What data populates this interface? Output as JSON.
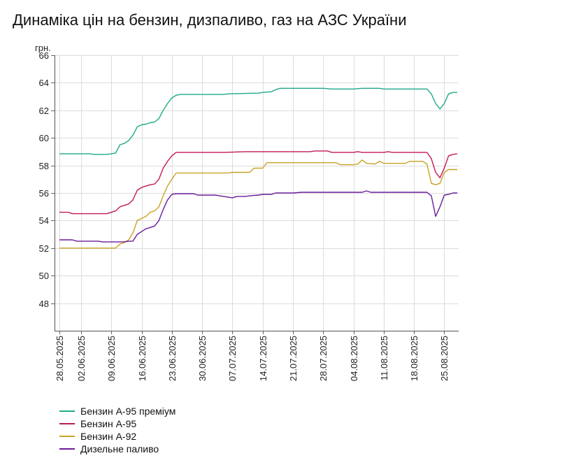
{
  "title": "Динаміка цін на бензин, дизпаливо, газ на АЗС України",
  "chart_data": {
    "type": "line",
    "title": "Динаміка цін на бензин, дизпаливо, газ на АЗС України",
    "ylabel": "грн.",
    "xlabel": "",
    "ylim": [
      46,
      66
    ],
    "yticks": [
      48,
      50,
      52,
      54,
      56,
      58,
      60,
      62,
      64,
      66
    ],
    "x_start": "28.05.2025",
    "x_end": "28.08.2025",
    "xticks": [
      "28.05.2025",
      "02.06.2025",
      "09.06.2025",
      "16.06.2025",
      "23.06.2025",
      "30.06.2025",
      "07.07.2025",
      "14.07.2025",
      "21.07.2025",
      "28.07.2025",
      "04.08.2025",
      "11.08.2025",
      "18.08.2025",
      "25.08.2025"
    ],
    "grid": true,
    "legend_position": "bottom",
    "series": [
      {
        "name": "Бензин А-95 преміум",
        "color": "#1fa98a",
        "points": [
          [
            "28.05.2025",
            58.85
          ],
          [
            "02.06.2025",
            58.85
          ],
          [
            "04.06.2025",
            58.85
          ],
          [
            "05.06.2025",
            58.8
          ],
          [
            "08.06.2025",
            58.8
          ],
          [
            "09.06.2025",
            58.85
          ],
          [
            "10.06.2025",
            58.9
          ],
          [
            "11.06.2025",
            59.5
          ],
          [
            "12.06.2025",
            59.6
          ],
          [
            "13.06.2025",
            59.8
          ],
          [
            "14.06.2025",
            60.2
          ],
          [
            "15.06.2025",
            60.8
          ],
          [
            "16.06.2025",
            60.95
          ],
          [
            "17.06.2025",
            61.0
          ],
          [
            "18.06.2025",
            61.1
          ],
          [
            "19.06.2025",
            61.15
          ],
          [
            "20.06.2025",
            61.4
          ],
          [
            "21.06.2025",
            62.0
          ],
          [
            "22.06.2025",
            62.5
          ],
          [
            "23.06.2025",
            62.9
          ],
          [
            "24.06.2025",
            63.1
          ],
          [
            "25.06.2025",
            63.15
          ],
          [
            "30.06.2025",
            63.15
          ],
          [
            "05.07.2025",
            63.15
          ],
          [
            "06.07.2025",
            63.2
          ],
          [
            "13.07.2025",
            63.25
          ],
          [
            "14.07.2025",
            63.3
          ],
          [
            "16.07.2025",
            63.35
          ],
          [
            "17.07.2025",
            63.5
          ],
          [
            "18.07.2025",
            63.6
          ],
          [
            "21.07.2025",
            63.6
          ],
          [
            "28.07.2025",
            63.6
          ],
          [
            "30.07.2025",
            63.55
          ],
          [
            "04.08.2025",
            63.55
          ],
          [
            "06.08.2025",
            63.6
          ],
          [
            "10.08.2025",
            63.6
          ],
          [
            "11.08.2025",
            63.55
          ],
          [
            "18.08.2025",
            63.55
          ],
          [
            "21.08.2025",
            63.55
          ],
          [
            "22.08.2025",
            63.2
          ],
          [
            "23.08.2025",
            62.5
          ],
          [
            "24.08.2025",
            62.1
          ],
          [
            "25.08.2025",
            62.5
          ],
          [
            "26.08.2025",
            63.2
          ],
          [
            "27.08.2025",
            63.3
          ],
          [
            "28.08.2025",
            63.3
          ]
        ]
      },
      {
        "name": "Бензин А-95",
        "color": "#c2185b",
        "points": [
          [
            "28.05.2025",
            54.6
          ],
          [
            "30.05.2025",
            54.6
          ],
          [
            "31.05.2025",
            54.5
          ],
          [
            "08.06.2025",
            54.5
          ],
          [
            "09.06.2025",
            54.6
          ],
          [
            "10.06.2025",
            54.7
          ],
          [
            "11.06.2025",
            55.0
          ],
          [
            "12.06.2025",
            55.1
          ],
          [
            "13.06.2025",
            55.2
          ],
          [
            "14.06.2025",
            55.5
          ],
          [
            "15.06.2025",
            56.2
          ],
          [
            "16.06.2025",
            56.4
          ],
          [
            "17.06.2025",
            56.5
          ],
          [
            "18.06.2025",
            56.6
          ],
          [
            "19.06.2025",
            56.65
          ],
          [
            "20.06.2025",
            57.0
          ],
          [
            "21.06.2025",
            57.8
          ],
          [
            "22.06.2025",
            58.3
          ],
          [
            "23.06.2025",
            58.7
          ],
          [
            "24.06.2025",
            58.95
          ],
          [
            "05.07.2025",
            58.95
          ],
          [
            "10.07.2025",
            59.0
          ],
          [
            "25.07.2025",
            59.0
          ],
          [
            "26.07.2025",
            59.05
          ],
          [
            "29.07.2025",
            59.05
          ],
          [
            "30.07.2025",
            58.95
          ],
          [
            "04.08.2025",
            58.95
          ],
          [
            "05.08.2025",
            59.0
          ],
          [
            "06.08.2025",
            58.95
          ],
          [
            "11.08.2025",
            58.95
          ],
          [
            "12.08.2025",
            59.0
          ],
          [
            "13.08.2025",
            58.95
          ],
          [
            "21.08.2025",
            58.95
          ],
          [
            "22.08.2025",
            58.5
          ],
          [
            "23.08.2025",
            57.5
          ],
          [
            "24.08.2025",
            57.1
          ],
          [
            "25.08.2025",
            57.8
          ],
          [
            "26.08.2025",
            58.7
          ],
          [
            "27.08.2025",
            58.8
          ],
          [
            "28.08.2025",
            58.85
          ]
        ]
      },
      {
        "name": "Бензин А-92",
        "color": "#c9a227",
        "points": [
          [
            "28.05.2025",
            52.0
          ],
          [
            "09.06.2025",
            52.0
          ],
          [
            "10.06.2025",
            52.0
          ],
          [
            "11.06.2025",
            52.3
          ],
          [
            "12.06.2025",
            52.4
          ],
          [
            "13.06.2025",
            52.6
          ],
          [
            "14.06.2025",
            53.1
          ],
          [
            "15.06.2025",
            54.0
          ],
          [
            "16.06.2025",
            54.15
          ],
          [
            "17.06.2025",
            54.3
          ],
          [
            "18.06.2025",
            54.6
          ],
          [
            "19.06.2025",
            54.7
          ],
          [
            "20.06.2025",
            55.0
          ],
          [
            "21.06.2025",
            55.8
          ],
          [
            "22.06.2025",
            56.5
          ],
          [
            "23.06.2025",
            57.0
          ],
          [
            "24.06.2025",
            57.45
          ],
          [
            "30.06.2025",
            57.45
          ],
          [
            "06.07.2025",
            57.45
          ],
          [
            "07.07.2025",
            57.5
          ],
          [
            "11.07.2025",
            57.5
          ],
          [
            "12.07.2025",
            57.8
          ],
          [
            "14.07.2025",
            57.8
          ],
          [
            "15.07.2025",
            58.2
          ],
          [
            "21.07.2025",
            58.2
          ],
          [
            "28.07.2025",
            58.2
          ],
          [
            "31.07.2025",
            58.2
          ],
          [
            "01.08.2025",
            58.05
          ],
          [
            "04.08.2025",
            58.05
          ],
          [
            "05.08.2025",
            58.1
          ],
          [
            "06.08.2025",
            58.4
          ],
          [
            "07.08.2025",
            58.15
          ],
          [
            "09.08.2025",
            58.1
          ],
          [
            "10.08.2025",
            58.3
          ],
          [
            "11.08.2025",
            58.15
          ],
          [
            "16.08.2025",
            58.15
          ],
          [
            "17.08.2025",
            58.3
          ],
          [
            "20.08.2025",
            58.3
          ],
          [
            "21.08.2025",
            58.1
          ],
          [
            "22.08.2025",
            56.7
          ],
          [
            "23.08.2025",
            56.6
          ],
          [
            "24.08.2025",
            56.7
          ],
          [
            "25.08.2025",
            57.5
          ],
          [
            "26.08.2025",
            57.7
          ],
          [
            "28.08.2025",
            57.7
          ]
        ]
      },
      {
        "name": "Дизельне паливо",
        "color": "#6a1b9a",
        "points": [
          [
            "28.05.2025",
            52.6
          ],
          [
            "31.05.2025",
            52.6
          ],
          [
            "01.06.2025",
            52.5
          ],
          [
            "06.06.2025",
            52.5
          ],
          [
            "07.06.2025",
            52.45
          ],
          [
            "12.06.2025",
            52.45
          ],
          [
            "13.06.2025",
            52.5
          ],
          [
            "14.06.2025",
            52.5
          ],
          [
            "15.06.2025",
            53.0
          ],
          [
            "16.06.2025",
            53.2
          ],
          [
            "17.06.2025",
            53.4
          ],
          [
            "18.06.2025",
            53.5
          ],
          [
            "19.06.2025",
            53.6
          ],
          [
            "20.06.2025",
            54.0
          ],
          [
            "21.06.2025",
            54.8
          ],
          [
            "22.06.2025",
            55.5
          ],
          [
            "23.06.2025",
            55.9
          ],
          [
            "24.06.2025",
            55.95
          ],
          [
            "28.06.2025",
            55.95
          ],
          [
            "29.06.2025",
            55.85
          ],
          [
            "03.07.2025",
            55.85
          ],
          [
            "04.07.2025",
            55.8
          ],
          [
            "05.07.2025",
            55.75
          ],
          [
            "06.07.2025",
            55.7
          ],
          [
            "07.07.2025",
            55.65
          ],
          [
            "08.07.2025",
            55.75
          ],
          [
            "10.07.2025",
            55.75
          ],
          [
            "11.07.2025",
            55.8
          ],
          [
            "13.07.2025",
            55.85
          ],
          [
            "14.07.2025",
            55.9
          ],
          [
            "16.07.2025",
            55.9
          ],
          [
            "17.07.2025",
            56.0
          ],
          [
            "21.07.2025",
            56.0
          ],
          [
            "23.07.2025",
            56.05
          ],
          [
            "28.07.2025",
            56.05
          ],
          [
            "04.08.2025",
            56.05
          ],
          [
            "06.08.2025",
            56.05
          ],
          [
            "07.08.2025",
            56.15
          ],
          [
            "08.08.2025",
            56.05
          ],
          [
            "18.08.2025",
            56.05
          ],
          [
            "21.08.2025",
            56.05
          ],
          [
            "22.08.2025",
            55.8
          ],
          [
            "23.08.2025",
            54.3
          ],
          [
            "24.08.2025",
            55.0
          ],
          [
            "25.08.2025",
            55.85
          ],
          [
            "26.08.2025",
            55.9
          ],
          [
            "27.08.2025",
            56.0
          ],
          [
            "28.08.2025",
            56.0
          ]
        ]
      }
    ]
  }
}
